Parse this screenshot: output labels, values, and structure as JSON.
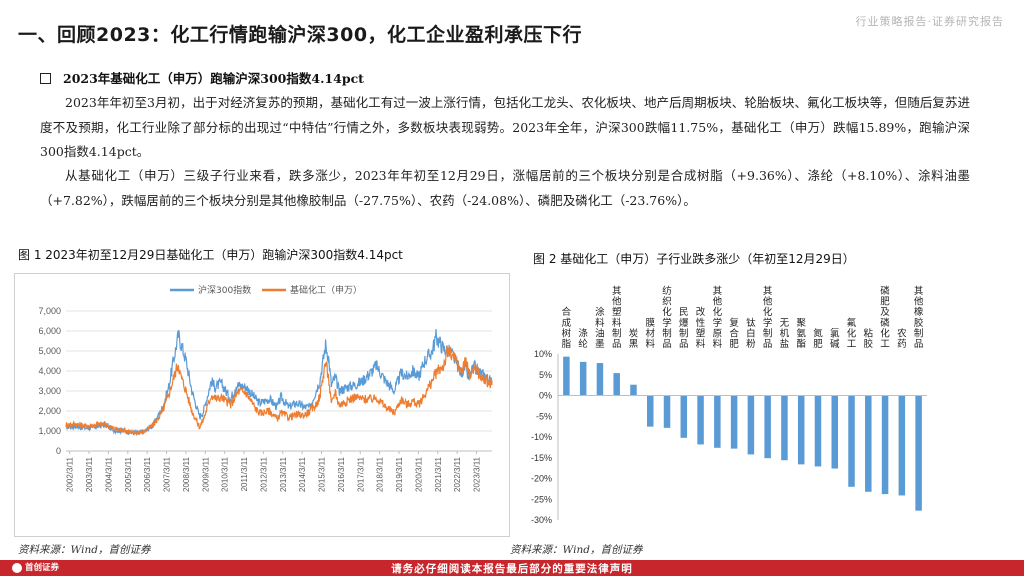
{
  "header": {
    "title": "一、回顾2023：化工行情跑输沪深300，化工企业盈利承压下行",
    "tag": "行业策略报告·证券研究报告"
  },
  "section": {
    "heading": "2023年基础化工（申万）跑输沪深300指数4.14pct",
    "para1": "2023年年初至3月初，出于对经济复苏的预期，基础化工有过一波上涨行情，包括化工龙头、农化板块、地产后周期板块、轮胎板块、氟化工板块等，但随后复苏进度不及预期，化工行业除了部分标的出现过“中特估”行情之外，多数板块表现弱势。2023年全年，沪深300跌幅11.75%，基础化工（申万）跌幅15.89%，跑输沪深300指数4.14pct。",
    "para2": "从基础化工（申万）三级子行业来看，跌多涨少，2023年年初至12月29日，涨幅居前的三个板块分别是合成树脂（+9.36%）、涤纶（+8.10%）、涂料油墨（+7.82%），跌幅居前的三个板块分别是其他橡胶制品（-27.75%）、农药（-24.08%）、磷肥及磷化工（-23.76%）。"
  },
  "figures": {
    "fig1_title": "图 1 2023年初至12月29日基础化工（申万）跑输沪深300指数4.14pct",
    "fig2_title": "图 2  基础化工（申万）子行业跌多涨少（年初至12月29日）",
    "source1": "资料来源：Wind，首创证券",
    "source2": "资料来源：Wind，首创证券"
  },
  "footer": {
    "notice": "请务必仔细阅读本报告最后部分的重要法律声明",
    "logo_text": "首创证券"
  },
  "colors": {
    "hs300": "#5b9bd5",
    "chem": "#ed7d31",
    "bar": "#5b9bd5",
    "footer": "#c6262c"
  },
  "chart_data": [
    {
      "type": "line",
      "title": "",
      "legend": [
        "沪深300指数",
        "基础化工（申万）"
      ],
      "legend_position": "top-center",
      "ylim": [
        0,
        7000
      ],
      "yticks": [
        "0",
        "1,000",
        "2,000",
        "3,000",
        "4,000",
        "5,000",
        "6,000",
        "7,000"
      ],
      "xticks": [
        "2002/3/11",
        "2003/3/11",
        "2004/3/11",
        "2005/3/11",
        "2006/3/11",
        "2007/3/11",
        "2008/3/11",
        "2009/3/11",
        "2010/3/11",
        "2011/3/11",
        "2012/3/11",
        "2013/3/11",
        "2014/3/11",
        "2015/3/11",
        "2016/3/11",
        "2017/3/11",
        "2018/3/11",
        "2019/3/11",
        "2020/3/11",
        "2021/3/11",
        "2022/3/11",
        "2023/3/11"
      ],
      "x_start": 2002.0,
      "x_end": 2023.99,
      "series": [
        {
          "name": "沪深300指数",
          "points": [
            [
              2002.0,
              1200
            ],
            [
              2002.5,
              1250
            ],
            [
              2003.0,
              1150
            ],
            [
              2003.5,
              1200
            ],
            [
              2004.0,
              1300
            ],
            [
              2004.5,
              1050
            ],
            [
              2005.0,
              1000
            ],
            [
              2005.5,
              900
            ],
            [
              2006.0,
              950
            ],
            [
              2006.5,
              1300
            ],
            [
              2007.0,
              2200
            ],
            [
              2007.3,
              3200
            ],
            [
              2007.6,
              4800
            ],
            [
              2007.8,
              5800
            ],
            [
              2007.9,
              5500
            ],
            [
              2008.2,
              4500
            ],
            [
              2008.5,
              3000
            ],
            [
              2008.9,
              1700
            ],
            [
              2009.1,
              2000
            ],
            [
              2009.5,
              3500
            ],
            [
              2009.7,
              3200
            ],
            [
              2010.0,
              3400
            ],
            [
              2010.5,
              2600
            ],
            [
              2010.8,
              3300
            ],
            [
              2011.3,
              3200
            ],
            [
              2011.8,
              2600
            ],
            [
              2012.0,
              2400
            ],
            [
              2012.5,
              2600
            ],
            [
              2012.9,
              2200
            ],
            [
              2013.1,
              2700
            ],
            [
              2013.5,
              2200
            ],
            [
              2013.9,
              2400
            ],
            [
              2014.3,
              2200
            ],
            [
              2014.6,
              2200
            ],
            [
              2014.9,
              3000
            ],
            [
              2015.1,
              3500
            ],
            [
              2015.4,
              5300
            ],
            [
              2015.55,
              4700
            ],
            [
              2015.7,
              3300
            ],
            [
              2015.9,
              3700
            ],
            [
              2016.1,
              3000
            ],
            [
              2016.5,
              3200
            ],
            [
              2016.9,
              3300
            ],
            [
              2017.3,
              3500
            ],
            [
              2017.9,
              4100
            ],
            [
              2018.0,
              4300
            ],
            [
              2018.5,
              3500
            ],
            [
              2018.95,
              3000
            ],
            [
              2019.3,
              3900
            ],
            [
              2019.6,
              3700
            ],
            [
              2019.9,
              4000
            ],
            [
              2020.2,
              3700
            ],
            [
              2020.5,
              4500
            ],
            [
              2020.9,
              5000
            ],
            [
              2021.1,
              5700
            ],
            [
              2021.5,
              5100
            ],
            [
              2021.9,
              4900
            ],
            [
              2022.2,
              4300
            ],
            [
              2022.4,
              3900
            ],
            [
              2022.6,
              4200
            ],
            [
              2022.8,
              3600
            ],
            [
              2022.95,
              4000
            ],
            [
              2023.1,
              4200
            ],
            [
              2023.4,
              3900
            ],
            [
              2023.7,
              3700
            ],
            [
              2023.99,
              3400
            ]
          ]
        },
        {
          "name": "基础化工（申万）",
          "points": [
            [
              2002.0,
              1300
            ],
            [
              2002.5,
              1350
            ],
            [
              2003.0,
              1250
            ],
            [
              2003.5,
              1300
            ],
            [
              2004.0,
              1350
            ],
            [
              2004.5,
              1100
            ],
            [
              2005.0,
              1050
            ],
            [
              2005.5,
              900
            ],
            [
              2006.0,
              950
            ],
            [
              2006.5,
              1300
            ],
            [
              2007.0,
              2000
            ],
            [
              2007.3,
              2800
            ],
            [
              2007.6,
              3800
            ],
            [
              2007.8,
              4400
            ],
            [
              2007.9,
              3800
            ],
            [
              2008.2,
              3000
            ],
            [
              2008.5,
              2000
            ],
            [
              2008.9,
              1200
            ],
            [
              2009.1,
              1600
            ],
            [
              2009.5,
              2800
            ],
            [
              2009.8,
              2600
            ],
            [
              2010.0,
              2700
            ],
            [
              2010.5,
              2300
            ],
            [
              2010.9,
              3000
            ],
            [
              2011.3,
              2900
            ],
            [
              2011.8,
              2100
            ],
            [
              2012.0,
              1900
            ],
            [
              2012.5,
              2000
            ],
            [
              2012.9,
              1600
            ],
            [
              2013.1,
              1900
            ],
            [
              2013.5,
              1700
            ],
            [
              2013.9,
              1800
            ],
            [
              2014.3,
              1800
            ],
            [
              2014.6,
              2000
            ],
            [
              2014.9,
              2300
            ],
            [
              2015.1,
              2700
            ],
            [
              2015.4,
              4500
            ],
            [
              2015.55,
              3700
            ],
            [
              2015.7,
              2300
            ],
            [
              2015.9,
              3000
            ],
            [
              2016.1,
              2300
            ],
            [
              2016.5,
              2500
            ],
            [
              2016.9,
              2700
            ],
            [
              2017.3,
              2600
            ],
            [
              2017.9,
              2600
            ],
            [
              2018.0,
              2700
            ],
            [
              2018.5,
              2200
            ],
            [
              2018.95,
              1900
            ],
            [
              2019.3,
              2600
            ],
            [
              2019.6,
              2300
            ],
            [
              2019.9,
              2500
            ],
            [
              2020.2,
              2300
            ],
            [
              2020.5,
              2800
            ],
            [
              2020.9,
              3500
            ],
            [
              2021.1,
              3900
            ],
            [
              2021.5,
              4300
            ],
            [
              2021.7,
              5000
            ],
            [
              2021.9,
              4800
            ],
            [
              2022.2,
              4400
            ],
            [
              2022.4,
              3900
            ],
            [
              2022.6,
              4600
            ],
            [
              2022.8,
              3900
            ],
            [
              2022.95,
              3900
            ],
            [
              2023.1,
              4200
            ],
            [
              2023.4,
              3700
            ],
            [
              2023.7,
              3500
            ],
            [
              2023.99,
              3300
            ]
          ]
        }
      ]
    },
    {
      "type": "bar",
      "title": "",
      "ylim": [
        -30,
        10
      ],
      "yticks": [
        "10%",
        "5%",
        "0%",
        "-5%",
        "-10%",
        "-15%",
        "-20%",
        "-25%",
        "-30%"
      ],
      "categories": [
        "合成树脂",
        "涤纶",
        "涂料油墨",
        "其他塑料制品",
        "炭黑",
        "膜材料",
        "纺织化学制品",
        "民爆制品",
        "改性塑料",
        "其他化学原料",
        "复合肥",
        "钛白粉",
        "其他化学制品",
        "无机盐",
        "聚氨酯",
        "氮肥",
        "氯碱",
        "氟化工",
        "粘胶",
        "磷肥及磷化工",
        "农药",
        "其他橡胶制品"
      ],
      "values": [
        9.36,
        8.1,
        7.82,
        5.4,
        2.6,
        -7.5,
        -7.8,
        -10.2,
        -11.8,
        -12.6,
        -12.8,
        -14.2,
        -15.1,
        -15.6,
        -16.6,
        -17.1,
        -17.6,
        -22.0,
        -23.2,
        -23.76,
        -24.08,
        -27.75
      ]
    }
  ]
}
